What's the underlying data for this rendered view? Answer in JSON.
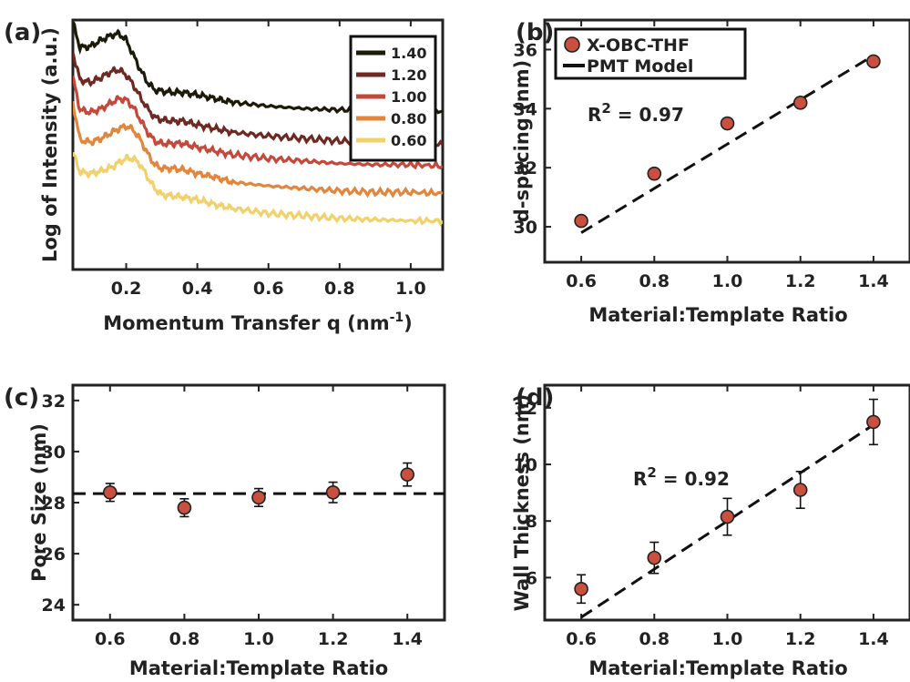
{
  "chart_data": [
    {
      "panel": "(a)",
      "type": "line",
      "xlabel": "Momentum Transfer q (nm",
      "xlabel_sup": "-1",
      "xlabel_tail": ")",
      "ylabel": "Log of Intensity (a.u.)",
      "xlim": [
        0.05,
        1.09
      ],
      "ylim": [
        0,
        10
      ],
      "xticks": [
        "0.2",
        "0.4",
        "0.6",
        "0.8",
        "1.0"
      ],
      "xtick_values": [
        0.2,
        0.4,
        0.6,
        0.8,
        1.0
      ],
      "legend_position": "top-right",
      "series": [
        {
          "name": "1.40",
          "color": "#1c1a08",
          "x": [
            0.05,
            0.07,
            0.1,
            0.13,
            0.16,
            0.18,
            0.2,
            0.22,
            0.24,
            0.26,
            0.28,
            0.3,
            0.33,
            0.36,
            0.4,
            0.45,
            0.5,
            0.6,
            0.7,
            0.8,
            0.9,
            1.0,
            1.09
          ],
          "y": [
            9.9,
            8.9,
            8.95,
            9.2,
            9.4,
            9.45,
            9.2,
            8.6,
            8.0,
            7.5,
            7.2,
            7.15,
            7.1,
            7.1,
            7.0,
            6.85,
            6.7,
            6.55,
            6.45,
            6.4,
            6.4,
            6.35,
            6.35
          ]
        },
        {
          "name": "1.20",
          "color": "#6e2a22",
          "x": [
            0.05,
            0.07,
            0.1,
            0.13,
            0.16,
            0.18,
            0.2,
            0.22,
            0.24,
            0.26,
            0.28,
            0.3,
            0.33,
            0.36,
            0.4,
            0.45,
            0.5,
            0.6,
            0.7,
            0.8,
            0.9,
            1.0,
            1.09
          ],
          "y": [
            8.7,
            7.6,
            7.5,
            7.7,
            7.95,
            8.0,
            7.8,
            7.4,
            6.9,
            6.45,
            6.1,
            6.0,
            5.95,
            5.95,
            5.8,
            5.65,
            5.5,
            5.35,
            5.25,
            5.15,
            5.1,
            5.05,
            5.0
          ]
        },
        {
          "name": "1.00",
          "color": "#c4493b",
          "x": [
            0.05,
            0.07,
            0.1,
            0.13,
            0.16,
            0.18,
            0.2,
            0.22,
            0.24,
            0.26,
            0.28,
            0.3,
            0.33,
            0.36,
            0.4,
            0.45,
            0.5,
            0.6,
            0.7,
            0.8,
            0.9,
            1.0,
            1.09
          ],
          "y": [
            7.7,
            6.4,
            6.3,
            6.45,
            6.7,
            6.85,
            6.8,
            6.5,
            6.0,
            5.5,
            5.15,
            5.05,
            5.05,
            5.05,
            4.9,
            4.75,
            4.6,
            4.45,
            4.35,
            4.25,
            4.2,
            4.2,
            4.15
          ]
        },
        {
          "name": "0.80",
          "color": "#e3863d",
          "x": [
            0.05,
            0.07,
            0.1,
            0.13,
            0.16,
            0.18,
            0.2,
            0.22,
            0.24,
            0.26,
            0.28,
            0.3,
            0.33,
            0.36,
            0.4,
            0.45,
            0.5,
            0.6,
            0.7,
            0.8,
            0.9,
            1.0,
            1.09
          ],
          "y": [
            6.7,
            5.2,
            5.1,
            5.25,
            5.5,
            5.65,
            5.75,
            5.6,
            5.2,
            4.65,
            4.2,
            4.05,
            4.05,
            4.0,
            3.85,
            3.7,
            3.5,
            3.35,
            3.25,
            3.15,
            3.1,
            3.1,
            3.05
          ]
        },
        {
          "name": "0.60",
          "color": "#f1d16c",
          "x": [
            0.05,
            0.07,
            0.1,
            0.13,
            0.16,
            0.18,
            0.2,
            0.22,
            0.24,
            0.26,
            0.28,
            0.3,
            0.33,
            0.36,
            0.4,
            0.45,
            0.5,
            0.6,
            0.7,
            0.8,
            0.9,
            1.0,
            1.09
          ],
          "y": [
            4.7,
            3.9,
            3.85,
            3.95,
            4.1,
            4.3,
            4.45,
            4.45,
            4.2,
            3.7,
            3.25,
            3.0,
            2.95,
            2.9,
            2.8,
            2.6,
            2.45,
            2.25,
            2.15,
            2.05,
            2.0,
            1.95,
            1.95
          ]
        }
      ]
    },
    {
      "panel": "(b)",
      "type": "scatter",
      "xlabel": "Material:Template Ratio",
      "ylabel": "d-spacing (nm)",
      "xlim": [
        0.5,
        1.5
      ],
      "ylim": [
        28.8,
        37.0
      ],
      "xticks": [
        "0.6",
        "0.8",
        "1.0",
        "1.2",
        "1.4"
      ],
      "xtick_values": [
        0.6,
        0.8,
        1.0,
        1.2,
        1.4
      ],
      "yticks": [
        "30",
        "32",
        "34",
        "36"
      ],
      "ytick_values": [
        30,
        32,
        34,
        36
      ],
      "x": [
        0.6,
        0.8,
        1.0,
        1.2,
        1.4
      ],
      "y": [
        30.2,
        31.8,
        33.5,
        34.2,
        35.6
      ],
      "fit_line": {
        "x": [
          0.6,
          1.4
        ],
        "y": [
          29.8,
          35.8
        ]
      },
      "annotation": "R",
      "annotation_sup": "2",
      "annotation_tail": " = 0.97",
      "legend": [
        {
          "label": "X-OBC-THF",
          "kind": "marker"
        },
        {
          "label": "PMT Model",
          "kind": "line"
        }
      ],
      "legend_position": "top-left",
      "marker_color": "#c94f3f"
    },
    {
      "panel": "(c)",
      "type": "scatter",
      "xlabel": "Material:Template Ratio",
      "ylabel": "Pore Size (nm)",
      "xlim": [
        0.5,
        1.5
      ],
      "ylim": [
        23.4,
        32.6
      ],
      "xticks": [
        "0.6",
        "0.8",
        "1.0",
        "1.2",
        "1.4"
      ],
      "xtick_values": [
        0.6,
        0.8,
        1.0,
        1.2,
        1.4
      ],
      "yticks": [
        "24",
        "26",
        "28",
        "30",
        "32"
      ],
      "ytick_values": [
        24,
        26,
        28,
        30,
        32
      ],
      "x": [
        0.6,
        0.8,
        1.0,
        1.2,
        1.4
      ],
      "y": [
        28.4,
        27.8,
        28.2,
        28.4,
        29.1
      ],
      "yerr": [
        0.35,
        0.35,
        0.35,
        0.4,
        0.45
      ],
      "fit_line": {
        "x": [
          0.5,
          1.5
        ],
        "y": [
          28.35,
          28.35
        ]
      },
      "marker_color": "#c94f3f"
    },
    {
      "panel": "(d)",
      "type": "scatter",
      "xlabel": "Material:Template Ratio",
      "ylabel": "Wall Thickness (nm)",
      "xlim": [
        0.5,
        1.5
      ],
      "ylim": [
        4.5,
        12.8
      ],
      "xticks": [
        "0.6",
        "0.8",
        "1.0",
        "1.2",
        "1.4"
      ],
      "xtick_values": [
        0.6,
        0.8,
        1.0,
        1.2,
        1.4
      ],
      "yticks": [
        "6",
        "8",
        "10",
        "12"
      ],
      "ytick_values": [
        6,
        8,
        10,
        12
      ],
      "x": [
        0.6,
        0.8,
        1.0,
        1.2,
        1.4
      ],
      "y": [
        5.6,
        6.7,
        8.15,
        9.1,
        11.5
      ],
      "yerr": [
        0.5,
        0.55,
        0.65,
        0.65,
        0.8
      ],
      "fit_line": {
        "x": [
          0.6,
          1.4
        ],
        "y": [
          4.6,
          11.4
        ]
      },
      "annotation": "R",
      "annotation_sup": "2",
      "annotation_tail": " = 0.92",
      "marker_color": "#c94f3f"
    }
  ]
}
